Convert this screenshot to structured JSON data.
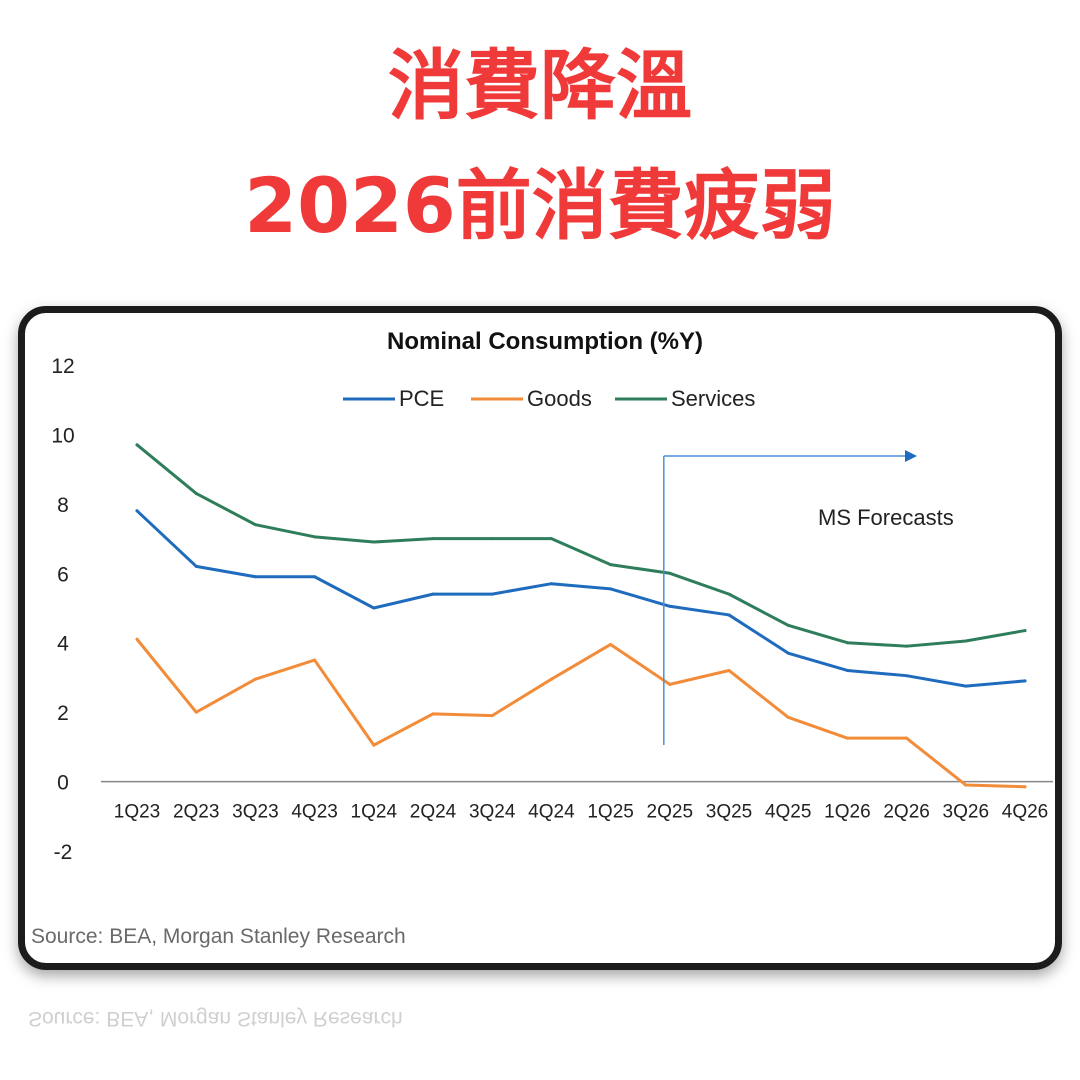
{
  "headline": {
    "line1": "消費降溫",
    "line2": "2026前消費疲弱"
  },
  "colors": {
    "headline": "#f03a3a",
    "pce": "#1f6bbd",
    "goods": "#f28c38",
    "services": "#2e7d5b",
    "forecast_marker": "#4a90d9"
  },
  "chart_data": {
    "type": "line",
    "title": "Nominal Consumption (%Y)",
    "categories": [
      "1Q23",
      "2Q23",
      "3Q23",
      "4Q23",
      "1Q24",
      "2Q24",
      "3Q24",
      "4Q24",
      "1Q25",
      "2Q25",
      "3Q25",
      "4Q25",
      "1Q26",
      "2Q26",
      "3Q26",
      "4Q26"
    ],
    "series": [
      {
        "name": "PCE",
        "values": [
          7.8,
          6.2,
          5.9,
          5.9,
          5.0,
          5.4,
          5.4,
          5.7,
          5.55,
          5.05,
          4.8,
          3.7,
          3.2,
          3.05,
          2.75,
          2.9
        ]
      },
      {
        "name": "Goods",
        "values": [
          4.1,
          2.0,
          2.95,
          3.5,
          1.05,
          1.95,
          1.9,
          2.95,
          3.95,
          2.8,
          3.2,
          1.85,
          1.25,
          1.25,
          -0.1,
          -0.15
        ]
      },
      {
        "name": "Services",
        "values": [
          9.7,
          8.3,
          7.4,
          7.05,
          6.9,
          7.0,
          7.0,
          7.0,
          6.25,
          6.0,
          5.4,
          4.5,
          4.0,
          3.9,
          4.05,
          4.35
        ]
      }
    ],
    "ylim": [
      -2,
      12
    ],
    "yticks": [
      12,
      10,
      8,
      6,
      4,
      2,
      0,
      -2
    ],
    "legend_position": "top-center",
    "grid": false,
    "annotation": {
      "text": "MS Forecasts",
      "start_category": "2Q25"
    },
    "source": "Source: BEA, Morgan Stanley Research"
  }
}
